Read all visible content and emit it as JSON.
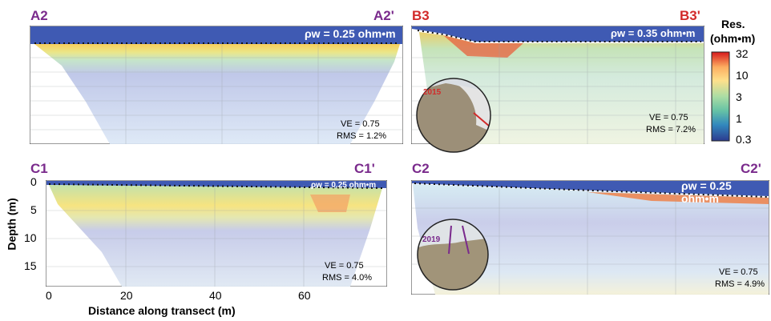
{
  "colors": {
    "label_purple": "#7a2a8c",
    "label_red": "#d22a2a",
    "water": "#3f5ab3",
    "grid": "#9aa0a6"
  },
  "colorbar": {
    "title_line1": "Res.",
    "title_line2": "(ohm•m)",
    "ticks": [
      "32",
      "10",
      "3",
      "1",
      "0.3"
    ],
    "stops": [
      "#d7191c",
      "#fdae61",
      "#fee08b",
      "#abdda4",
      "#66c2a5",
      "#3288bd",
      "#2c3b8f"
    ]
  },
  "axes": {
    "ylabel": "Depth (m)",
    "xlabel": "Distance along transect (m)",
    "yticks": [
      "0",
      "5",
      "10",
      "15"
    ],
    "xticks": [
      "0",
      "20",
      "40",
      "60"
    ]
  },
  "panels": [
    {
      "id": "A2",
      "left_label": "A2",
      "right_label": "A2'",
      "label_color": "purple",
      "water_label": "ρw = 0.25 ohm•m",
      "ve": "VE = 0.75",
      "rms": "RMS = 1.2%"
    },
    {
      "id": "B3",
      "left_label": "B3",
      "right_label": "B3'",
      "label_color": "red",
      "water_label": "ρw = 0.35 ohm•m",
      "ve": "VE = 0.75",
      "rms": "RMS = 7.2%",
      "inset_year": "2015"
    },
    {
      "id": "C1",
      "left_label": "C1",
      "right_label": "C1'",
      "label_color": "purple",
      "water_label": "ρw = 0.25 ohm•m",
      "ve": "VE = 0.75",
      "rms": "RMS = 4.0%"
    },
    {
      "id": "C2",
      "left_label": "C2",
      "right_label": "C2'",
      "label_color": "purple",
      "water_label": "ρw = 0.25 ohm•m",
      "ve": "VE = 0.75",
      "rms": "RMS = 4.9%",
      "inset_year": "2019"
    }
  ],
  "chart_data": {
    "type": "heatmap",
    "xlabel": "Distance along transect (m)",
    "ylabel": "Depth (m)",
    "xlim": [
      0,
      76
    ],
    "ylim": [
      18,
      0
    ],
    "colorbar_label": "Res. (ohm•m)",
    "colorbar_range": [
      0.3,
      32
    ],
    "colorbar_scale": "log",
    "sections": [
      {
        "name": "A2",
        "water_resistivity": 0.25,
        "vertical_exaggeration": 0.75,
        "rms_percent": 1.2
      },
      {
        "name": "B3",
        "water_resistivity": 0.35,
        "vertical_exaggeration": 0.75,
        "rms_percent": 7.2
      },
      {
        "name": "C1",
        "water_resistivity": 0.25,
        "vertical_exaggeration": 0.75,
        "rms_percent": 4.0
      },
      {
        "name": "C2",
        "water_resistivity": 0.25,
        "vertical_exaggeration": 0.75,
        "rms_percent": 4.9
      }
    ]
  }
}
